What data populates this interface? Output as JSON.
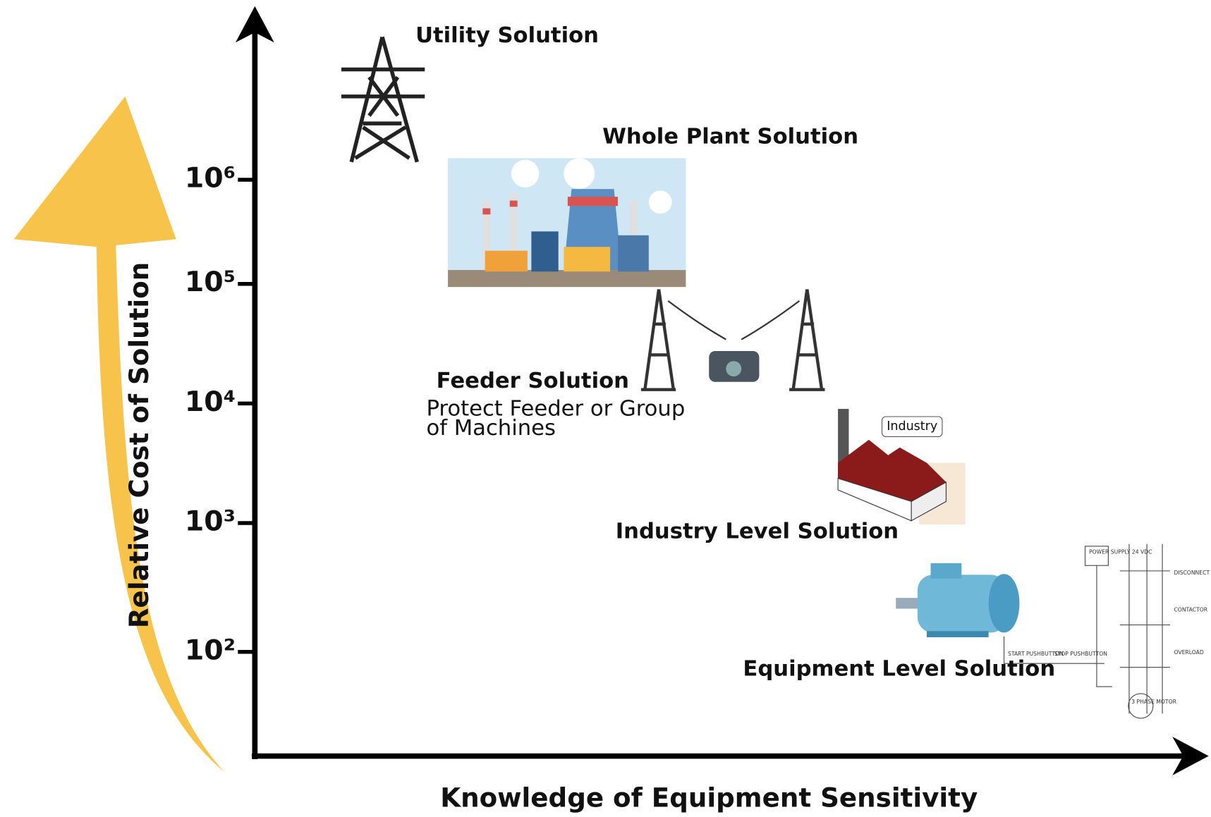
{
  "y_axis": {
    "label": "Relative Cost of Solution",
    "ticks": [
      "10⁶",
      "10⁵",
      "10⁴",
      "10³",
      "10²"
    ]
  },
  "x_axis": {
    "label": "Knowledge of Equipment Sensitivity"
  },
  "levels": [
    {
      "title": "Utility Solution"
    },
    {
      "title": "Whole Plant Solution"
    },
    {
      "title": "Feeder Solution",
      "description": [
        "Protect Feeder or Group",
        "of Machines"
      ]
    },
    {
      "title": "Industry Level Solution",
      "sign": "Industry"
    },
    {
      "title": "Equipment Level Solution"
    }
  ],
  "circuit": {
    "power_supply": "POWER SUPPLY 24 VDC",
    "disconnect": "DISCONNECT",
    "contactor": "CONTACTOR",
    "overload": "OVERLOAD",
    "start": "START PUSHBUTTON",
    "stop": "STOP PUSHBUTTON",
    "motor": "3 PHASE MOTOR"
  }
}
